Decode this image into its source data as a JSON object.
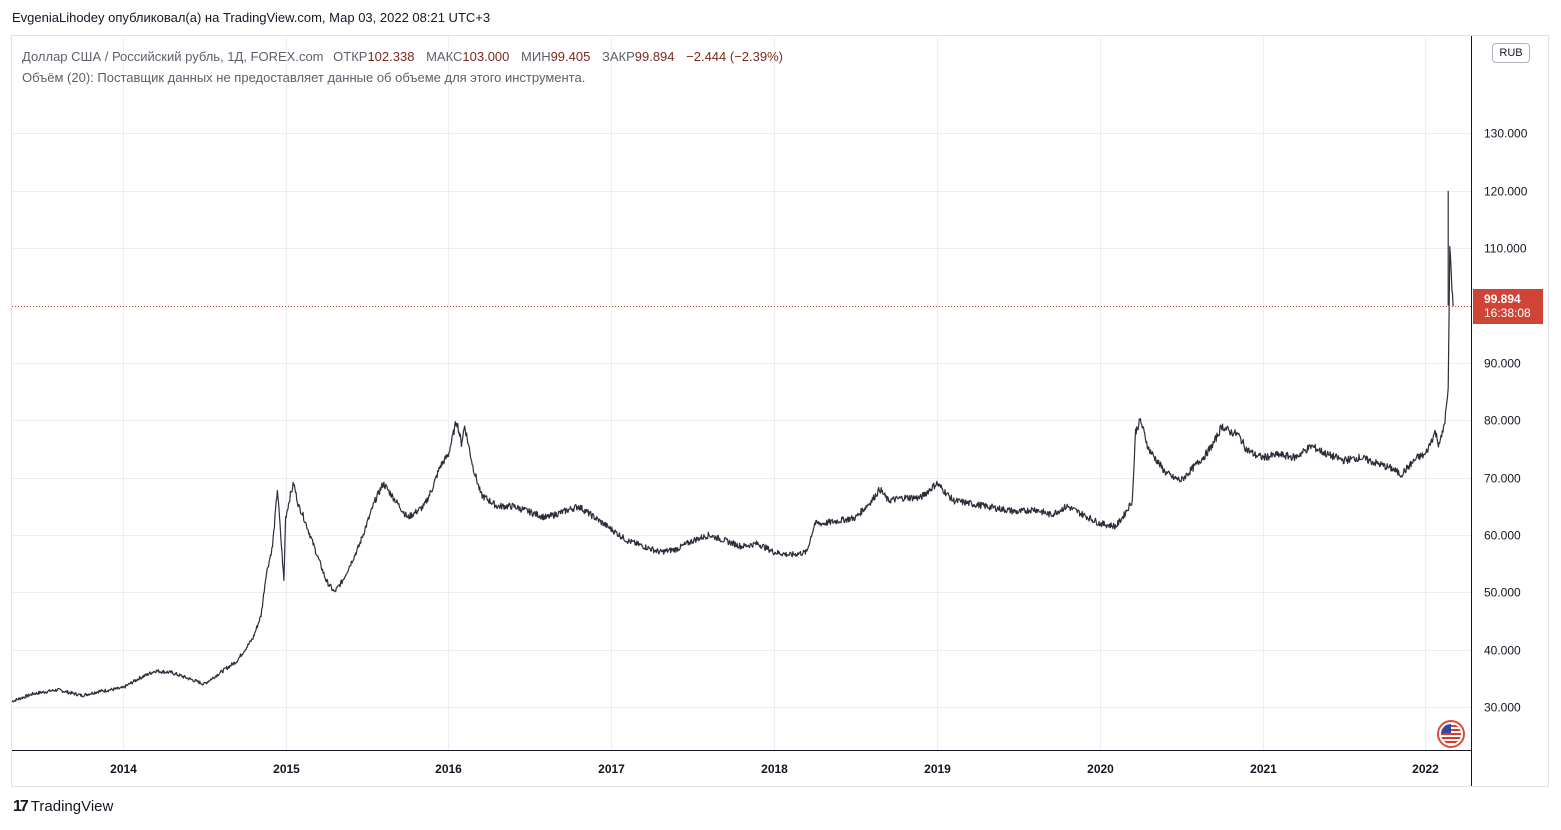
{
  "header": {
    "author": "EvgeniaLihodey",
    "published_text": "опубликовал(а) на TradingView.com, Мар 03, 2022 08:21 UTC+3"
  },
  "legend": {
    "symbol": "Доллар США / Российский рубль, 1Д, FOREX.com",
    "open_label": "ОТКР",
    "open_value": "102.338",
    "high_label": "МАКС",
    "high_value": "103.000",
    "low_label": "МИН",
    "low_value": "99.405",
    "close_label": "ЗАКР",
    "close_value": "99.894",
    "change": "−2.444 (−2.39%)",
    "volume_text": "Объём (20): Поставщик данных не предоставляет данные об объеме для этого инструмента."
  },
  "currency_badge": "RUB",
  "last_price": {
    "value": "99.894",
    "countdown": "16:38:08"
  },
  "footer": {
    "brand": "TradingView",
    "mark": "17"
  },
  "colors": {
    "up": "#26a69a",
    "down": "#ef5350",
    "candle": "#2a2e39",
    "price_line": "#cf4437",
    "grid": "#eceef2"
  },
  "icons": {
    "flag": "us-flag-icon",
    "logo": "tradingview-logo-icon"
  },
  "chart_data": {
    "type": "line",
    "title": "Доллар США / Российский рубль, 1Д, FOREX.com",
    "xlabel": "",
    "ylabel": "RUB",
    "x_ticks": [
      "2014",
      "2015",
      "2016",
      "2017",
      "2018",
      "2019",
      "2020",
      "2021",
      "2022"
    ],
    "y_ticks": [
      "30.000",
      "40.000",
      "50.000",
      "60.000",
      "70.000",
      "80.000",
      "90.000",
      "110.000",
      "120.000",
      "130.000"
    ],
    "ylim": [
      22.5,
      147
    ],
    "xlim": [
      2013.32,
      2022.28
    ],
    "grid": true,
    "series": [
      {
        "name": "USDRUB",
        "x": [
          2013.32,
          2013.45,
          2013.6,
          2013.75,
          2013.85,
          2014.0,
          2014.1,
          2014.2,
          2014.3,
          2014.4,
          2014.5,
          2014.6,
          2014.7,
          2014.8,
          2014.85,
          2014.88,
          2014.92,
          2014.95,
          2014.97,
          2014.99,
          2015.0,
          2015.03,
          2015.05,
          2015.08,
          2015.1,
          2015.15,
          2015.2,
          2015.25,
          2015.3,
          2015.35,
          2015.4,
          2015.45,
          2015.5,
          2015.55,
          2015.6,
          2015.65,
          2015.7,
          2015.75,
          2015.8,
          2015.85,
          2015.9,
          2015.95,
          2016.0,
          2016.05,
          2016.08,
          2016.1,
          2016.15,
          2016.2,
          2016.25,
          2016.3,
          2016.4,
          2016.5,
          2016.6,
          2016.7,
          2016.8,
          2016.9,
          2017.0,
          2017.1,
          2017.2,
          2017.3,
          2017.4,
          2017.5,
          2017.6,
          2017.7,
          2017.8,
          2017.9,
          2018.0,
          2018.1,
          2018.2,
          2018.25,
          2018.3,
          2018.4,
          2018.5,
          2018.6,
          2018.65,
          2018.7,
          2018.8,
          2018.9,
          2019.0,
          2019.1,
          2019.2,
          2019.3,
          2019.4,
          2019.5,
          2019.6,
          2019.7,
          2019.8,
          2019.9,
          2020.0,
          2020.1,
          2020.15,
          2020.2,
          2020.22,
          2020.25,
          2020.3,
          2020.35,
          2020.4,
          2020.45,
          2020.5,
          2020.55,
          2020.6,
          2020.65,
          2020.7,
          2020.75,
          2020.8,
          2020.85,
          2020.9,
          2020.95,
          2021.0,
          2021.1,
          2021.2,
          2021.3,
          2021.4,
          2021.5,
          2021.6,
          2021.7,
          2021.8,
          2021.85,
          2021.9,
          2021.95,
          2022.0,
          2022.03,
          2022.06,
          2022.08,
          2022.1,
          2022.12,
          2022.14,
          2022.15,
          2022.16,
          2022.17
        ],
        "values": [
          31.0,
          32.3,
          33.0,
          32.0,
          32.7,
          33.3,
          35.0,
          36.3,
          36.0,
          35.0,
          34.0,
          36.0,
          38.0,
          42.0,
          46.0,
          53.0,
          58.0,
          68.0,
          60.0,
          52.0,
          63.0,
          67.0,
          69.0,
          65.0,
          64.0,
          60.0,
          56.0,
          52.0,
          50.0,
          52.0,
          55.0,
          58.0,
          62.0,
          66.0,
          69.0,
          67.0,
          65.0,
          63.0,
          64.0,
          65.0,
          68.0,
          72.0,
          74.0,
          80.0,
          76.0,
          79.0,
          72.0,
          67.0,
          66.0,
          65.0,
          65.0,
          64.0,
          63.0,
          64.0,
          65.0,
          63.0,
          61.0,
          59.0,
          58.0,
          57.0,
          57.5,
          59.0,
          60.0,
          59.0,
          58.0,
          58.5,
          57.0,
          56.5,
          57.0,
          62.0,
          62.0,
          62.5,
          63.0,
          66.0,
          68.0,
          66.0,
          66.5,
          66.5,
          69.0,
          66.0,
          65.5,
          65.0,
          64.5,
          64.0,
          64.5,
          63.5,
          65.0,
          63.5,
          62.0,
          61.5,
          63.5,
          66.0,
          78.0,
          80.0,
          75.0,
          73.0,
          71.0,
          70.0,
          69.5,
          71.0,
          72.5,
          74.0,
          76.0,
          79.0,
          78.0,
          77.5,
          75.0,
          74.0,
          73.5,
          74.0,
          73.5,
          75.5,
          74.0,
          73.0,
          73.5,
          72.5,
          71.5,
          70.5,
          72.0,
          73.5,
          74.0,
          76.0,
          78.0,
          76.0,
          77.0,
          80.0,
          85.0,
          110.0,
          105.0,
          99.894
        ]
      }
    ],
    "last_value": 99.894,
    "all_time_high_marker": 120.0
  }
}
